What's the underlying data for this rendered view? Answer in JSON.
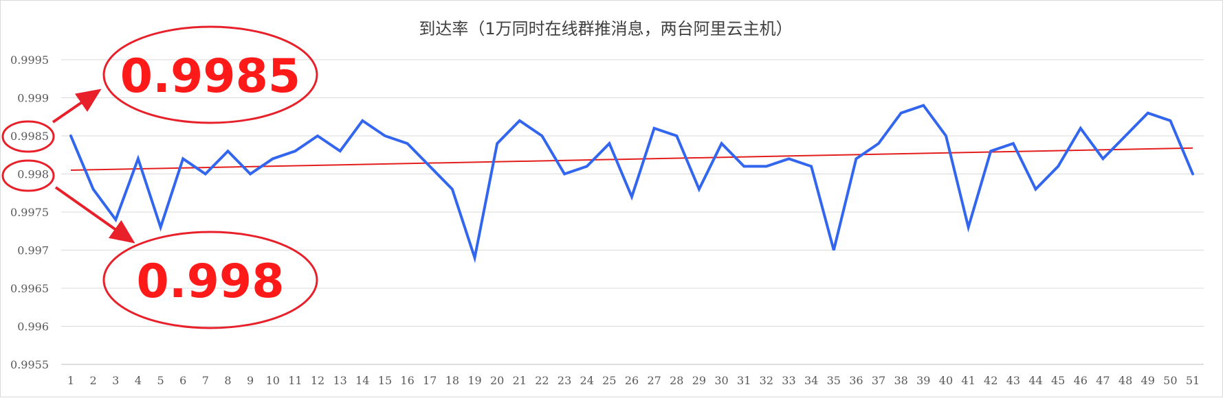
{
  "chart_data": {
    "type": "line",
    "title": "到达率（1万同时在线群推消息，两台阿里云主机）",
    "xlabel": "",
    "ylabel": "",
    "categories": [
      "1",
      "2",
      "3",
      "4",
      "5",
      "6",
      "7",
      "8",
      "9",
      "10",
      "11",
      "12",
      "13",
      "14",
      "15",
      "16",
      "17",
      "18",
      "19",
      "20",
      "21",
      "22",
      "23",
      "24",
      "25",
      "26",
      "27",
      "28",
      "29",
      "30",
      "31",
      "32",
      "33",
      "34",
      "35",
      "36",
      "37",
      "38",
      "39",
      "40",
      "41",
      "42",
      "43",
      "44",
      "45",
      "46",
      "47",
      "48",
      "49",
      "50",
      "51"
    ],
    "y_ticks": [
      "0.9955",
      "0.996",
      "0.9965",
      "0.997",
      "0.9975",
      "0.998",
      "0.9985",
      "0.999",
      "0.9995"
    ],
    "ylim": [
      0.9955,
      0.9995
    ],
    "grid": true,
    "legend": "none",
    "series": [
      {
        "color": "#3366ee",
        "values": [
          0.9985,
          0.9978,
          0.9974,
          0.9982,
          0.9973,
          0.9982,
          0.998,
          0.9983,
          0.998,
          0.9982,
          0.9983,
          0.9985,
          0.9983,
          0.9987,
          0.9985,
          0.9984,
          0.9981,
          0.9978,
          0.9969,
          0.9984,
          0.9987,
          0.9985,
          0.998,
          0.9981,
          0.9984,
          0.9977,
          0.9986,
          0.9985,
          0.9978,
          0.9984,
          0.9981,
          0.9981,
          0.9982,
          0.9981,
          0.997,
          0.9982,
          0.9984,
          0.9988,
          0.9989,
          0.9985,
          0.9973,
          0.9983,
          0.9984,
          0.9978,
          0.9981,
          0.9986,
          0.9982,
          0.9985,
          0.9988,
          0.9987,
          0.998
        ]
      }
    ],
    "trendline": {
      "color": "#e31c1c",
      "start": 0.99805,
      "end": 0.99834
    },
    "annotations": [
      {
        "label": "0.9985",
        "highlights_tick": "0.9985"
      },
      {
        "label": "0.998",
        "highlights_tick": "0.998"
      }
    ],
    "colors": {
      "grid": "#d9d9d9",
      "axis": "#bfbfbf",
      "callout": "#ff1a1a",
      "callout_ring": "#e8202a"
    }
  }
}
